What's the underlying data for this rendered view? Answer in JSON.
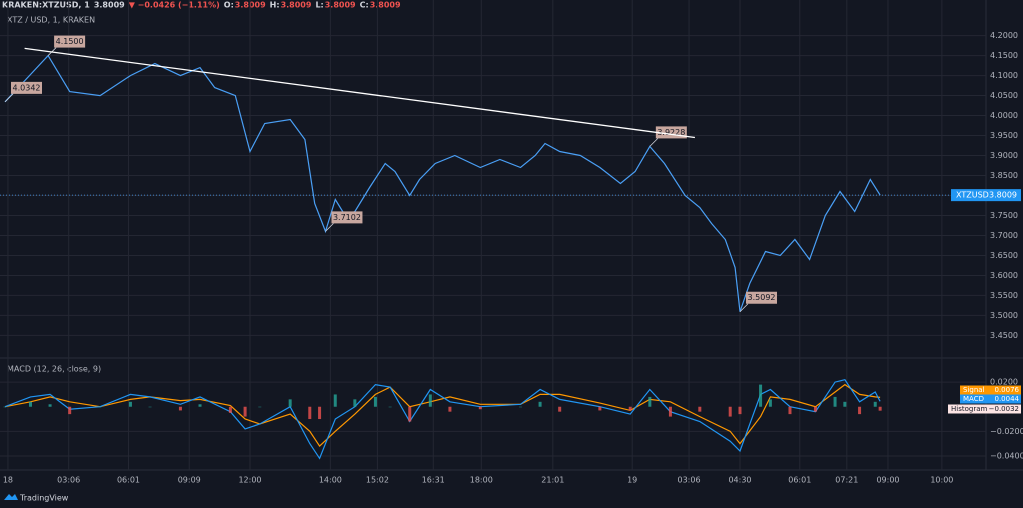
{
  "header": {
    "symbol": "KRAKEN:XTZUSD, 1",
    "price": "3.8009",
    "change": "▼ −0.0426 (−1.11%)",
    "ohlc": [
      [
        "O:",
        "3.8009"
      ],
      [
        "H:",
        "3.8009"
      ],
      [
        "L:",
        "3.8009"
      ],
      [
        "C:",
        "3.8009"
      ]
    ]
  },
  "chart_data": [
    {
      "type": "line",
      "title": "XTZ / USD, 1, KRAKEN",
      "x": [
        0,
        4.4,
        6.6,
        9.7,
        12.8,
        15.3,
        17.9,
        19.9,
        21.4,
        23.5,
        25,
        26.5,
        29.1,
        30.6,
        31.6,
        32.7,
        33.7,
        34.7,
        35.7,
        37.2,
        38.8,
        39.8,
        41.3,
        42.3,
        43.9,
        45.9,
        48.5,
        50.5,
        52.6,
        54.1,
        55.1,
        56.6,
        58.7,
        60.7,
        62.8,
        64.3,
        65.8,
        67.3,
        69.4,
        70.9,
        72.1,
        73.5,
        74.5,
        75,
        76,
        77.6,
        79.1,
        80.6,
        82.1,
        83.7,
        85.2,
        86.7,
        88.3,
        89.3
      ],
      "series": [
        {
          "name": "XTZUSD",
          "color": "#4a9ff5",
          "values": [
            4.0342,
            4.15,
            4.06,
            4.05,
            4.1,
            4.13,
            4.1,
            4.12,
            4.07,
            4.05,
            3.91,
            3.98,
            3.99,
            3.94,
            3.78,
            3.7102,
            3.79,
            3.75,
            3.76,
            3.82,
            3.88,
            3.86,
            3.8,
            3.84,
            3.88,
            3.9,
            3.87,
            3.89,
            3.87,
            3.9,
            3.93,
            3.91,
            3.9,
            3.87,
            3.83,
            3.86,
            3.9228,
            3.88,
            3.8,
            3.77,
            3.73,
            3.69,
            3.62,
            3.5092,
            3.58,
            3.66,
            3.65,
            3.69,
            3.64,
            3.75,
            3.81,
            3.76,
            3.84,
            3.8009
          ],
          "value_labels": [
            "4.0342",
            "4.1500",
            null,
            null,
            null,
            null,
            null,
            null,
            null,
            null,
            null,
            null,
            null,
            null,
            null,
            "3.7102",
            null,
            null,
            null,
            null,
            null,
            null,
            null,
            null,
            null,
            null,
            null,
            null,
            null,
            null,
            null,
            null,
            null,
            null,
            null,
            null,
            "3.9228",
            null,
            null,
            null,
            null,
            null,
            null,
            "3.5092",
            null,
            null,
            null,
            null,
            null,
            null,
            null,
            null,
            null,
            null
          ]
        }
      ],
      "trendline": {
        "x": [
          2,
          70.4
        ],
        "values": [
          4.168,
          3.945
        ],
        "color": "#ffffff"
      },
      "xlim": [
        0,
        100
      ],
      "xticks": [
        {
          "value": 0.3,
          "label": "18"
        },
        {
          "value": 6.5,
          "label": "03:06"
        },
        {
          "value": 12.6,
          "label": "06:01"
        },
        {
          "value": 18.8,
          "label": "09:09"
        },
        {
          "value": 25,
          "label": "12:00"
        },
        {
          "value": 33.2,
          "label": "14:00"
        },
        {
          "value": 38,
          "label": "15:02"
        },
        {
          "value": 43.7,
          "label": "16:31"
        },
        {
          "value": 48.6,
          "label": "18:00"
        },
        {
          "value": 55.9,
          "label": "21:01"
        },
        {
          "value": 64,
          "label": "19"
        },
        {
          "value": 69.8,
          "label": "03:06"
        },
        {
          "value": 75,
          "label": "04:30"
        },
        {
          "value": 81.1,
          "label": "06:01"
        },
        {
          "value": 85.9,
          "label": "07:21"
        },
        {
          "value": 90.1,
          "label": "09:00"
        },
        {
          "value": 95.6,
          "label": "10:00"
        }
      ],
      "ylim": [
        3.396,
        4.259
      ],
      "yticks": [
        {
          "value": 3.45,
          "label": "3.4500"
        },
        {
          "value": 3.5,
          "label": "3.5000"
        },
        {
          "value": 3.55,
          "label": "3.5500"
        },
        {
          "value": 3.6,
          "label": "3.6000"
        },
        {
          "value": 3.65,
          "label": "3.6500"
        },
        {
          "value": 3.7,
          "label": "3.7000"
        },
        {
          "value": 3.75,
          "label": "3.7500"
        },
        {
          "value": 3.8,
          "label": "3.8000"
        },
        {
          "value": 3.85,
          "label": "3.8500"
        },
        {
          "value": 3.9,
          "label": "3.9000"
        },
        {
          "value": 3.95,
          "label": "3.9500"
        },
        {
          "value": 4.0,
          "label": "4.0000"
        },
        {
          "value": 4.05,
          "label": "4.0500"
        },
        {
          "value": 4.1,
          "label": "4.1000"
        },
        {
          "value": 4.15,
          "label": "4.1500"
        },
        {
          "value": 4.2,
          "label": "4.2000"
        }
      ],
      "grid": true
    },
    {
      "type": "macd",
      "title": "MACD (12, 26, close, 9)",
      "x": [
        0,
        2.6,
        4.6,
        6.6,
        9.7,
        12.8,
        14.8,
        17.9,
        19.9,
        23,
        24.5,
        26,
        29.1,
        31.1,
        32.1,
        33.7,
        35.7,
        37.8,
        39.3,
        41.3,
        43.4,
        45.4,
        48.5,
        52.6,
        54.6,
        56.6,
        60.7,
        63.8,
        65.8,
        67.9,
        70.9,
        74,
        75,
        77.1,
        78.1,
        80.1,
        82.7,
        84.7,
        85.7,
        87.2,
        88.8,
        89.3
      ],
      "series": [
        {
          "name": "Signal",
          "color": "#ff9800",
          "values": [
            0,
            0.004,
            0.008,
            0.004,
            0,
            0.006,
            0.008,
            0.005,
            0.006,
            0.001,
            -0.01,
            -0.014,
            -0.006,
            -0.02,
            -0.032,
            -0.02,
            -0.006,
            0.01,
            0.016,
            0,
            0.004,
            0.008,
            0.002,
            0.002,
            0.01,
            0.01,
            0.003,
            -0.003,
            0.006,
            0.004,
            -0.008,
            -0.02,
            -0.03,
            -0.008,
            0.008,
            0.006,
            0,
            0.012,
            0.018,
            0.01,
            0.008,
            0.0076
          ]
        },
        {
          "name": "MACD",
          "color": "#2196f3",
          "values": [
            0,
            0.008,
            0.01,
            -0.002,
            0,
            0.01,
            0.008,
            0.002,
            0.008,
            -0.004,
            -0.018,
            -0.014,
            0,
            -0.03,
            -0.042,
            -0.01,
            0,
            0.018,
            0.016,
            -0.012,
            0.014,
            0.004,
            0,
            0.002,
            0.014,
            0.006,
            0,
            -0.006,
            0.014,
            -0.004,
            -0.012,
            -0.028,
            -0.036,
            0.01,
            0.014,
            0,
            -0.004,
            0.02,
            0.022,
            0.004,
            0.012,
            0.0044
          ]
        },
        {
          "name": "Histogram",
          "color": "#ef5350",
          "color_up": "#26a69a",
          "values": [
            0,
            0.004,
            0.002,
            -0.006,
            0,
            0.004,
            0,
            -0.003,
            0.002,
            -0.005,
            -0.008,
            0,
            0.006,
            -0.01,
            -0.01,
            0.01,
            0.006,
            0.008,
            0,
            -0.012,
            0.01,
            -0.004,
            -0.002,
            0,
            0.004,
            -0.004,
            -0.003,
            -0.003,
            0.008,
            -0.008,
            -0.004,
            -0.008,
            -0.006,
            0.018,
            0.006,
            -0.006,
            -0.004,
            0.008,
            0.004,
            -0.006,
            0.004,
            -0.0032
          ],
          "value_labels": [
            null,
            null,
            null,
            null,
            null,
            null,
            null,
            null,
            null,
            null,
            null,
            null,
            null,
            null,
            null,
            null,
            null,
            null,
            null,
            null,
            null,
            null,
            null,
            null,
            null,
            null,
            null,
            null,
            null,
            null,
            null,
            null,
            null,
            null,
            null,
            null,
            null,
            null,
            null,
            null,
            null,
            "−0.0032"
          ]
        }
      ],
      "xlim": [
        0,
        100
      ],
      "ylim": [
        -0.0498,
        0.038
      ],
      "yticks": [
        {
          "value": 0.02,
          "label": "0.0200"
        },
        {
          "value": -0.02,
          "label": "−0.0200"
        },
        {
          "value": -0.04,
          "label": "−0.0400"
        }
      ],
      "grid": true
    }
  ],
  "footer": "TradingView"
}
